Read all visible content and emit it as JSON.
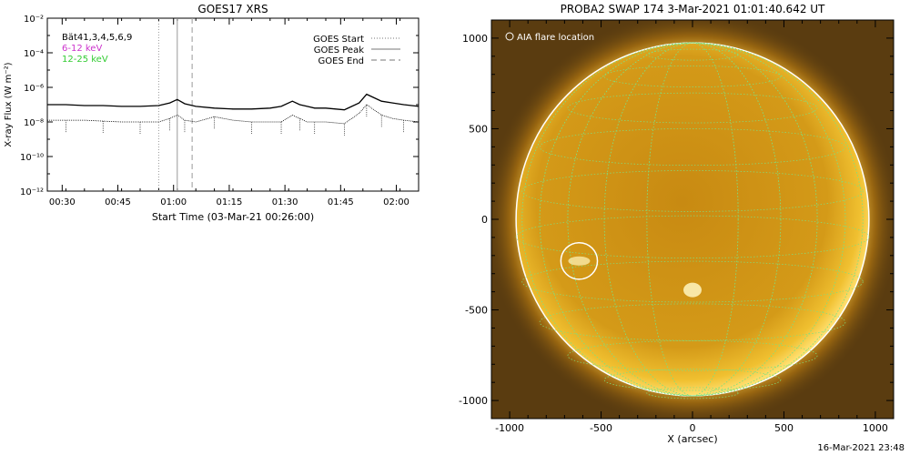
{
  "chart_data": [
    {
      "type": "line",
      "title": "GOES17 XRS",
      "xlabel": "Start Time (03-Mar-21 00:26:00)",
      "ylabel": "X-ray Flux (W m⁻²)",
      "x_unit": "minutes after 00:26:00",
      "xlim": [
        0,
        100
      ],
      "ylim_log10": [
        -12,
        -2
      ],
      "yscale": "log",
      "x_tick_labels": [
        "00:30",
        "00:45",
        "01:00",
        "01:15",
        "01:30",
        "01:45",
        "02:00"
      ],
      "x_tick_values": [
        4,
        19,
        34,
        49,
        64,
        79,
        94
      ],
      "y_tick_labels": [
        "10⁻¹²",
        "10⁻¹⁰",
        "10⁻⁸",
        "10⁻⁶",
        "10⁻⁴",
        "10⁻²"
      ],
      "y_tick_values": [
        -12,
        -10,
        -8,
        -6,
        -4,
        -2
      ],
      "legend_left": [
        {
          "label": "Bät41,3,4,5,6,9",
          "color": "#000000"
        },
        {
          "label": "6-12 keV",
          "color": "#cc33cc"
        },
        {
          "label": "12-25 keV",
          "color": "#33cc33"
        }
      ],
      "legend_right": [
        {
          "label": "GOES Start",
          "style": "dotted"
        },
        {
          "label": "GOES Peak",
          "style": "solid"
        },
        {
          "label": "GOES End",
          "style": "dashed"
        }
      ],
      "markers": {
        "goes_start": 30,
        "goes_peak": 35,
        "goes_end": 39
      },
      "series": [
        {
          "name": "",
          "style": "solid",
          "x": [
            0,
            5,
            10,
            15,
            20,
            25,
            30,
            33,
            35,
            37,
            40,
            45,
            50,
            55,
            60,
            63,
            66,
            68,
            70,
            72,
            75,
            80,
            84,
            86,
            88,
            90,
            93,
            96,
            100
          ],
          "log10_y": [
            -7.0,
            -7.0,
            -7.05,
            -7.05,
            -7.1,
            -7.1,
            -7.05,
            -6.9,
            -6.7,
            -6.95,
            -7.1,
            -7.2,
            -7.25,
            -7.25,
            -7.2,
            -7.1,
            -6.8,
            -7.0,
            -7.1,
            -7.2,
            -7.2,
            -7.3,
            -6.9,
            -6.4,
            -6.6,
            -6.8,
            -6.9,
            -7.0,
            -7.1
          ]
        },
        {
          "name": "",
          "style": "dotted",
          "x": [
            0,
            5,
            10,
            15,
            20,
            25,
            30,
            33,
            35,
            37,
            40,
            45,
            50,
            55,
            60,
            63,
            66,
            68,
            70,
            72,
            75,
            80,
            84,
            86,
            88,
            90,
            93,
            96,
            100
          ],
          "log10_y": [
            -7.9,
            -7.9,
            -7.9,
            -7.95,
            -8.0,
            -8.0,
            -8.0,
            -7.8,
            -7.6,
            -7.9,
            -8.0,
            -7.7,
            -7.9,
            -8.0,
            -8.0,
            -8.0,
            -7.6,
            -7.8,
            -8.0,
            -8.0,
            -8.0,
            -8.1,
            -7.5,
            -7.0,
            -7.3,
            -7.6,
            -7.8,
            -7.9,
            -8.0
          ]
        }
      ]
    },
    {
      "type": "image",
      "title": "PROBA2 SWAP 174   3-Mar-2021 01:01:40.642 UT",
      "xlabel": "X (arcsec)",
      "ylabel": "",
      "xlim": [
        -1100,
        1100
      ],
      "ylim": [
        -1100,
        1100
      ],
      "x_ticks": [
        -1000,
        -500,
        0,
        500,
        1000
      ],
      "y_ticks": [
        -1000,
        -500,
        0,
        500,
        1000
      ],
      "legend": "AIA flare location",
      "flare_location_arcsec": {
        "x": -620,
        "y": -230,
        "radius": 100
      },
      "solar_radius_arcsec": 965,
      "colors": {
        "disk": "#d89a10",
        "corona": "#8a5a08",
        "background": "#5a3c10",
        "grid": "#7fe07f",
        "limb": "#ffffff"
      }
    }
  ],
  "footer_timestamp": "16-Mar-2021 23:48"
}
